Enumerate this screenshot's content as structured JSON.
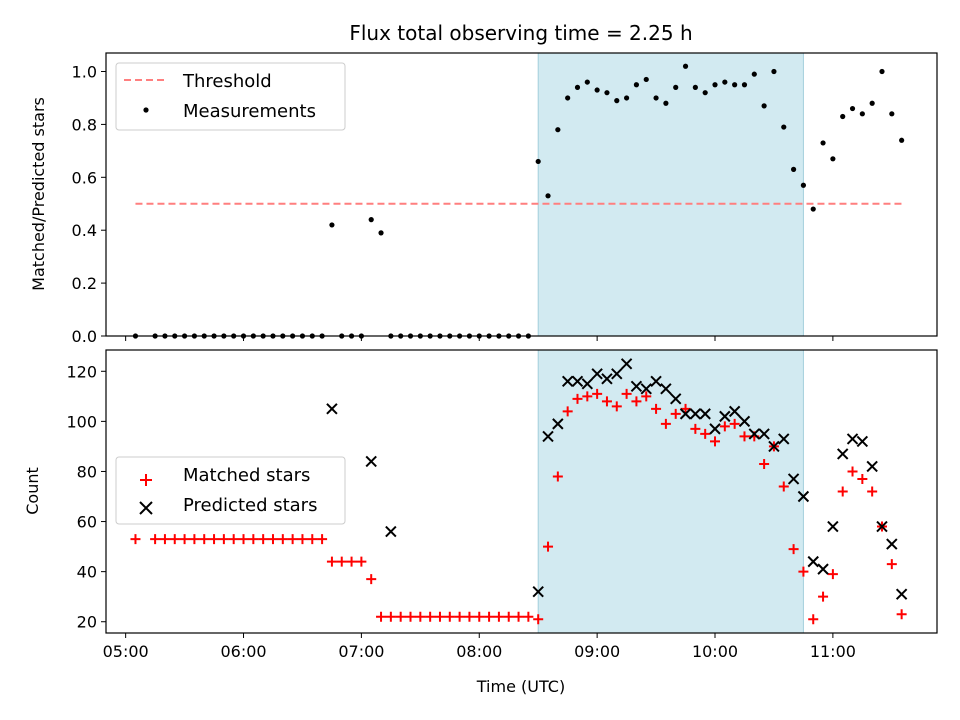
{
  "chart_data": [
    {
      "type": "scatter",
      "title": "Flux total observing time = 2.25 h",
      "ylabel": "Matched/Predicted stars",
      "xlabel": "",
      "xlim": [
        "04:50",
        "11:53"
      ],
      "ylim": [
        0,
        1.07
      ],
      "yticks": [
        0.0,
        0.2,
        0.4,
        0.6,
        0.8,
        1.0
      ],
      "ytick_labels": [
        "0.0",
        "0.2",
        "0.4",
        "0.6",
        "0.8",
        "1.0"
      ],
      "shaded_interval": [
        "08:30",
        "10:45"
      ],
      "legend_position": "upper-left",
      "series": [
        {
          "name": "Threshold",
          "kind": "dashed-line",
          "color": "#ff7f7f",
          "x": [
            "05:05",
            "11:35"
          ],
          "y": [
            0.5,
            0.5
          ]
        },
        {
          "name": "Measurements",
          "kind": "dot",
          "color": "#000000",
          "x": [
            "05:05",
            "05:15",
            "05:20",
            "05:25",
            "05:30",
            "05:35",
            "05:40",
            "05:45",
            "05:50",
            "05:55",
            "06:00",
            "06:05",
            "06:10",
            "06:15",
            "06:20",
            "06:25",
            "06:30",
            "06:35",
            "06:40",
            "06:45",
            "06:50",
            "06:55",
            "07:00",
            "07:05",
            "07:10",
            "07:15",
            "07:20",
            "07:25",
            "07:30",
            "07:35",
            "07:40",
            "07:45",
            "07:50",
            "07:55",
            "08:00",
            "08:05",
            "08:10",
            "08:15",
            "08:20",
            "08:25",
            "08:30",
            "08:35",
            "08:40",
            "08:45",
            "08:50",
            "08:55",
            "09:00",
            "09:05",
            "09:10",
            "09:15",
            "09:20",
            "09:25",
            "09:30",
            "09:35",
            "09:40",
            "09:45",
            "09:50",
            "09:55",
            "10:00",
            "10:05",
            "10:10",
            "10:15",
            "10:20",
            "10:25",
            "10:30",
            "10:35",
            "10:40",
            "10:45",
            "10:50",
            "10:55",
            "11:00",
            "11:05",
            "11:10",
            "11:15",
            "11:20",
            "11:25",
            "11:30",
            "11:35"
          ],
          "y": [
            0.0,
            0.0,
            0.0,
            0.0,
            0.0,
            0.0,
            0.0,
            0.0,
            0.0,
            0.0,
            0.0,
            0.0,
            0.0,
            0.0,
            0.0,
            0.0,
            0.0,
            0.0,
            0.0,
            0.42,
            0.0,
            0.0,
            0.0,
            0.44,
            0.39,
            0.0,
            0.0,
            0.0,
            0.0,
            0.0,
            0.0,
            0.0,
            0.0,
            0.0,
            0.0,
            0.0,
            0.0,
            0.0,
            0.0,
            0.0,
            0.66,
            0.53,
            0.78,
            0.9,
            0.94,
            0.96,
            0.93,
            0.92,
            0.89,
            0.9,
            0.95,
            0.97,
            0.9,
            0.88,
            0.94,
            1.02,
            0.94,
            0.92,
            0.95,
            0.96,
            0.95,
            0.95,
            0.99,
            0.87,
            1.0,
            0.79,
            0.63,
            0.57,
            0.48,
            0.73,
            0.67,
            0.83,
            0.86,
            0.84,
            0.88,
            1.0,
            0.84,
            0.74
          ]
        }
      ]
    },
    {
      "type": "scatter",
      "xlabel": "Time (UTC)",
      "ylabel": "Count",
      "xlim": [
        "04:50",
        "11:53"
      ],
      "ylim": [
        15.5,
        128.5
      ],
      "yticks": [
        20,
        40,
        60,
        80,
        100,
        120
      ],
      "ytick_labels": [
        "20",
        "40",
        "60",
        "80",
        "100",
        "120"
      ],
      "xticks": [
        "05:00",
        "06:00",
        "07:00",
        "08:00",
        "09:00",
        "10:00",
        "11:00"
      ],
      "xtick_labels": [
        "05:00",
        "06:00",
        "07:00",
        "08:00",
        "09:00",
        "10:00",
        "11:00"
      ],
      "shaded_interval": [
        "08:30",
        "10:45"
      ],
      "legend_position": "center-left",
      "series": [
        {
          "name": "Matched stars",
          "marker": "+",
          "color": "#ff0000",
          "x": [
            "05:05",
            "05:15",
            "05:20",
            "05:25",
            "05:30",
            "05:35",
            "05:40",
            "05:45",
            "05:50",
            "05:55",
            "06:00",
            "06:05",
            "06:10",
            "06:15",
            "06:20",
            "06:25",
            "06:30",
            "06:35",
            "06:40",
            "06:45",
            "06:50",
            "06:55",
            "07:00",
            "07:05",
            "07:10",
            "07:15",
            "07:20",
            "07:25",
            "07:30",
            "07:35",
            "07:40",
            "07:45",
            "07:50",
            "07:55",
            "08:00",
            "08:05",
            "08:10",
            "08:15",
            "08:20",
            "08:25",
            "08:30",
            "08:35",
            "08:40",
            "08:45",
            "08:50",
            "08:55",
            "09:00",
            "09:05",
            "09:10",
            "09:15",
            "09:20",
            "09:25",
            "09:30",
            "09:35",
            "09:40",
            "09:45",
            "09:50",
            "09:55",
            "10:00",
            "10:05",
            "10:10",
            "10:15",
            "10:20",
            "10:25",
            "10:30",
            "10:35",
            "10:40",
            "10:45",
            "10:50",
            "10:55",
            "11:00",
            "11:05",
            "11:10",
            "11:15",
            "11:20",
            "11:25",
            "11:30",
            "11:35"
          ],
          "y": [
            53,
            53,
            53,
            53,
            53,
            53,
            53,
            53,
            53,
            53,
            53,
            53,
            53,
            53,
            53,
            53,
            53,
            53,
            53,
            44,
            44,
            44,
            44,
            37,
            22,
            22,
            22,
            22,
            22,
            22,
            22,
            22,
            22,
            22,
            22,
            22,
            22,
            22,
            22,
            22,
            21,
            50,
            78,
            104,
            109,
            110,
            111,
            108,
            106,
            111,
            108,
            110,
            105,
            99,
            103,
            105,
            97,
            95,
            92,
            98,
            99,
            94,
            94,
            83,
            90,
            74,
            49,
            40,
            21,
            30,
            39,
            72,
            80,
            77,
            72,
            58,
            43,
            23
          ]
        },
        {
          "name": "Predicted stars",
          "marker": "x",
          "color": "#000000",
          "x": [
            "06:45",
            "07:05",
            "07:15",
            "08:30",
            "08:35",
            "08:40",
            "08:45",
            "08:50",
            "08:55",
            "09:00",
            "09:05",
            "09:10",
            "09:15",
            "09:20",
            "09:25",
            "09:30",
            "09:35",
            "09:40",
            "09:45",
            "09:50",
            "09:55",
            "10:00",
            "10:05",
            "10:10",
            "10:15",
            "10:20",
            "10:25",
            "10:30",
            "10:35",
            "10:40",
            "10:45",
            "10:50",
            "10:55",
            "11:00",
            "11:05",
            "11:10",
            "11:15",
            "11:20",
            "11:25",
            "11:30",
            "11:35"
          ],
          "y": [
            105,
            84,
            56,
            32,
            94,
            99,
            116,
            116,
            115,
            119,
            117,
            119,
            123,
            114,
            113,
            116,
            113,
            109,
            103,
            103,
            103,
            97,
            102,
            104,
            100,
            95,
            95,
            90,
            93,
            77,
            70,
            44,
            41,
            58,
            87,
            93,
            92,
            82,
            58,
            51,
            31
          ]
        }
      ]
    }
  ]
}
